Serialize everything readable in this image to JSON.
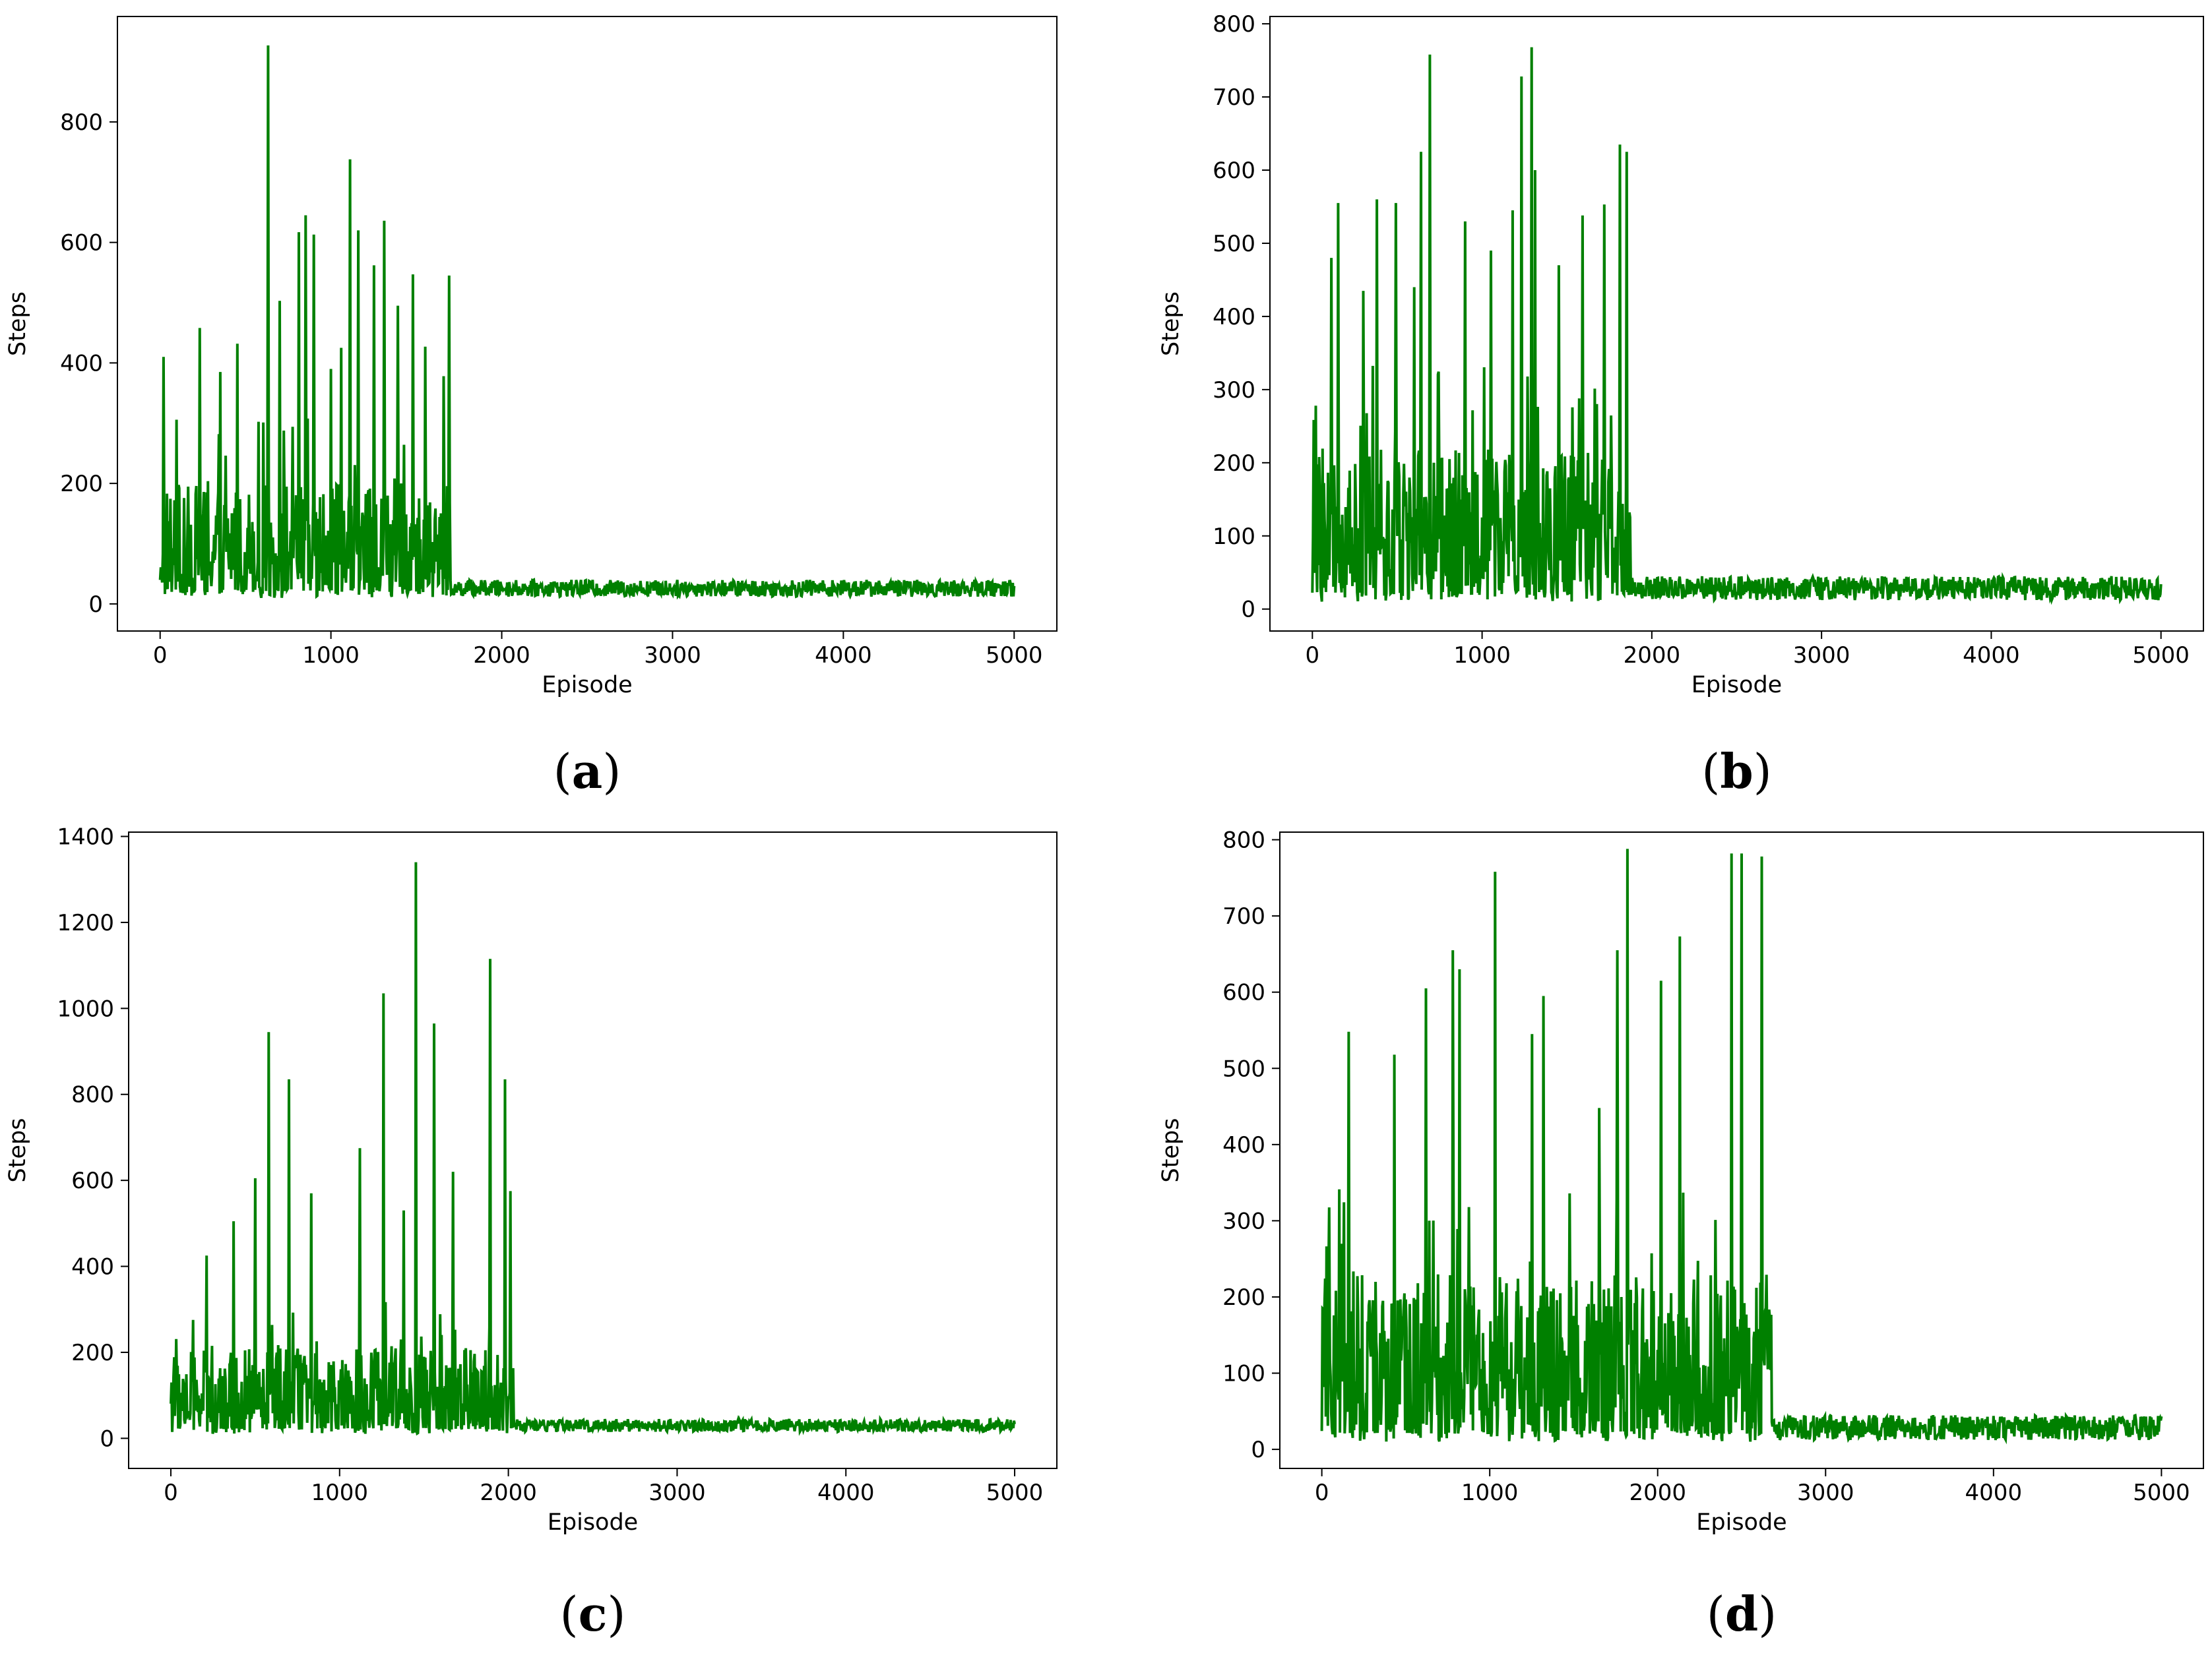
{
  "figure": {
    "series_color": "#008000",
    "panels": [
      {
        "label_open": "(",
        "label_letter": "a",
        "label_close": ")",
        "chart_data": {
          "type": "line",
          "xlabel": "Episode",
          "ylabel": "Steps",
          "xlim": [
            -250,
            5250
          ],
          "ylim": [
            -45,
            975
          ],
          "xticks": [
            0,
            1000,
            2000,
            3000,
            4000,
            5000
          ],
          "yticks": [
            0,
            200,
            400,
            600,
            800
          ],
          "episodes_total": 5000,
          "converge_episode": 1700,
          "early_band": [
            20,
            200
          ],
          "late_band": [
            12,
            40
          ],
          "peaks": [
            {
              "x": 20,
              "y": 410
            },
            {
              "x": 230,
              "y": 458
            },
            {
              "x": 350,
              "y": 385
            },
            {
              "x": 450,
              "y": 432
            },
            {
              "x": 630,
              "y": 927
            },
            {
              "x": 700,
              "y": 503
            },
            {
              "x": 810,
              "y": 617
            },
            {
              "x": 850,
              "y": 645
            },
            {
              "x": 900,
              "y": 613
            },
            {
              "x": 1000,
              "y": 390
            },
            {
              "x": 1060,
              "y": 425
            },
            {
              "x": 1110,
              "y": 738
            },
            {
              "x": 1160,
              "y": 620
            },
            {
              "x": 1250,
              "y": 562
            },
            {
              "x": 1310,
              "y": 636
            },
            {
              "x": 1390,
              "y": 495
            },
            {
              "x": 1480,
              "y": 547
            },
            {
              "x": 1550,
              "y": 427
            },
            {
              "x": 1660,
              "y": 378
            },
            {
              "x": 1690,
              "y": 545
            }
          ]
        }
      },
      {
        "label_open": "(",
        "label_letter": "b",
        "label_close": ")",
        "chart_data": {
          "type": "line",
          "xlabel": "Episode",
          "ylabel": "Steps",
          "xlim": [
            -250,
            5250
          ],
          "ylim": [
            -30,
            810
          ],
          "xticks": [
            0,
            1000,
            2000,
            3000,
            4000,
            5000
          ],
          "yticks": [
            0,
            100,
            200,
            300,
            400,
            500,
            600,
            700,
            800
          ],
          "episodes_total": 5000,
          "converge_episode": 1880,
          "early_band": [
            20,
            220
          ],
          "late_band": [
            12,
            45
          ],
          "peaks": [
            {
              "x": 110,
              "y": 480
            },
            {
              "x": 150,
              "y": 555
            },
            {
              "x": 300,
              "y": 435
            },
            {
              "x": 380,
              "y": 560
            },
            {
              "x": 490,
              "y": 555
            },
            {
              "x": 600,
              "y": 440
            },
            {
              "x": 640,
              "y": 625
            },
            {
              "x": 690,
              "y": 758
            },
            {
              "x": 900,
              "y": 530
            },
            {
              "x": 1050,
              "y": 490
            },
            {
              "x": 1180,
              "y": 545
            },
            {
              "x": 1230,
              "y": 728
            },
            {
              "x": 1290,
              "y": 768
            },
            {
              "x": 1310,
              "y": 600
            },
            {
              "x": 1450,
              "y": 470
            },
            {
              "x": 1590,
              "y": 538
            },
            {
              "x": 1720,
              "y": 553
            },
            {
              "x": 1810,
              "y": 635
            },
            {
              "x": 1850,
              "y": 625
            }
          ]
        }
      },
      {
        "label_open": "(",
        "label_letter": "c",
        "label_close": ")",
        "chart_data": {
          "type": "line",
          "xlabel": "Episode",
          "ylabel": "Steps",
          "xlim": [
            -250,
            5250
          ],
          "ylim": [
            -70,
            1410
          ],
          "xticks": [
            0,
            1000,
            2000,
            3000,
            4000,
            5000
          ],
          "yticks": [
            0,
            200,
            400,
            600,
            800,
            1000,
            1200,
            1400
          ],
          "episodes_total": 5000,
          "converge_episode": 2030,
          "early_band": [
            20,
            210
          ],
          "late_band": [
            15,
            45
          ],
          "peaks": [
            {
              "x": 210,
              "y": 425
            },
            {
              "x": 370,
              "y": 505
            },
            {
              "x": 500,
              "y": 605
            },
            {
              "x": 580,
              "y": 945
            },
            {
              "x": 700,
              "y": 835
            },
            {
              "x": 830,
              "y": 570
            },
            {
              "x": 1120,
              "y": 675
            },
            {
              "x": 1260,
              "y": 1035
            },
            {
              "x": 1380,
              "y": 530
            },
            {
              "x": 1450,
              "y": 1340
            },
            {
              "x": 1560,
              "y": 965
            },
            {
              "x": 1670,
              "y": 620
            },
            {
              "x": 1890,
              "y": 1115
            },
            {
              "x": 1980,
              "y": 835
            },
            {
              "x": 2010,
              "y": 575
            }
          ]
        }
      },
      {
        "label_open": "(",
        "label_letter": "d",
        "label_close": ")",
        "chart_data": {
          "type": "line",
          "xlabel": "Episode",
          "ylabel": "Steps",
          "xlim": [
            -250,
            5250
          ],
          "ylim": [
            -25,
            810
          ],
          "xticks": [
            0,
            1000,
            2000,
            3000,
            4000,
            5000
          ],
          "yticks": [
            0,
            100,
            200,
            300,
            400,
            500,
            600,
            700,
            800
          ],
          "episodes_total": 5000,
          "converge_episode": 2680,
          "early_band": [
            20,
            230
          ],
          "late_band": [
            12,
            45
          ],
          "peaks": [
            {
              "x": 160,
              "y": 548
            },
            {
              "x": 430,
              "y": 518
            },
            {
              "x": 620,
              "y": 605
            },
            {
              "x": 780,
              "y": 655
            },
            {
              "x": 820,
              "y": 630
            },
            {
              "x": 1030,
              "y": 758
            },
            {
              "x": 1250,
              "y": 545
            },
            {
              "x": 1320,
              "y": 595
            },
            {
              "x": 1650,
              "y": 448
            },
            {
              "x": 1760,
              "y": 655
            },
            {
              "x": 1820,
              "y": 788
            },
            {
              "x": 2020,
              "y": 615
            },
            {
              "x": 2130,
              "y": 673
            },
            {
              "x": 2440,
              "y": 782
            },
            {
              "x": 2500,
              "y": 782
            },
            {
              "x": 2620,
              "y": 778
            }
          ]
        }
      }
    ]
  }
}
